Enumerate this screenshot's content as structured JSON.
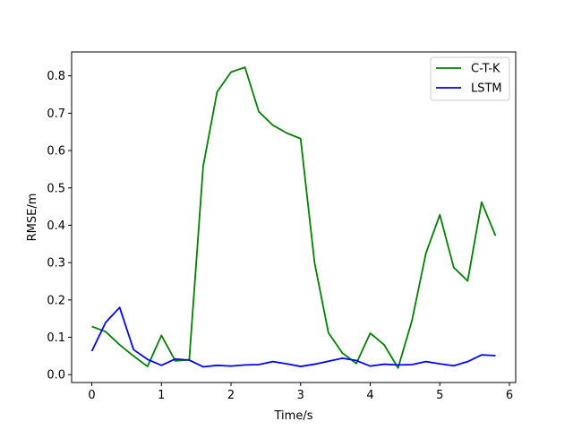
{
  "chart_data": {
    "type": "line",
    "xlabel": "Time/s",
    "ylabel": "RMSE/m",
    "xlim": [
      -0.29,
      6.09
    ],
    "ylim": [
      -0.021,
      0.864
    ],
    "xticks": [
      0,
      1,
      2,
      3,
      4,
      5,
      6
    ],
    "yticks": [
      0.0,
      0.1,
      0.2,
      0.3,
      0.4,
      0.5,
      0.6,
      0.7,
      0.8
    ],
    "xtick_labels": [
      "0",
      "1",
      "2",
      "3",
      "4",
      "5",
      "6"
    ],
    "ytick_labels": [
      "0.0",
      "0.1",
      "0.2",
      "0.3",
      "0.4",
      "0.5",
      "0.6",
      "0.7",
      "0.8"
    ],
    "grid": false,
    "legend_position": "top-right",
    "x": [
      0,
      0.2,
      0.4,
      0.6,
      0.8,
      1.0,
      1.2,
      1.4,
      1.6,
      1.8,
      2.0,
      2.2,
      2.4,
      2.6,
      2.8,
      3.0,
      3.2,
      3.4,
      3.6,
      3.8,
      4.0,
      4.2,
      4.4,
      4.6,
      4.8,
      5.0,
      5.2,
      5.4,
      5.6,
      5.8
    ],
    "series": [
      {
        "name": "C-T-K",
        "color": "#008000",
        "values": [
          0.129,
          0.115,
          0.08,
          0.05,
          0.022,
          0.105,
          0.037,
          0.04,
          0.558,
          0.757,
          0.81,
          0.823,
          0.704,
          0.668,
          0.647,
          0.632,
          0.3,
          0.112,
          0.058,
          0.03,
          0.111,
          0.08,
          0.018,
          0.145,
          0.325,
          0.428,
          0.287,
          0.251,
          0.462,
          0.372
        ]
      },
      {
        "name": "LSTM",
        "color": "#0000ff",
        "values": [
          0.063,
          0.14,
          0.18,
          0.067,
          0.041,
          0.025,
          0.042,
          0.039,
          0.021,
          0.025,
          0.023,
          0.026,
          0.027,
          0.035,
          0.029,
          0.022,
          0.028,
          0.036,
          0.044,
          0.038,
          0.023,
          0.028,
          0.026,
          0.027,
          0.035,
          0.029,
          0.024,
          0.035,
          0.053,
          0.051
        ]
      }
    ]
  }
}
